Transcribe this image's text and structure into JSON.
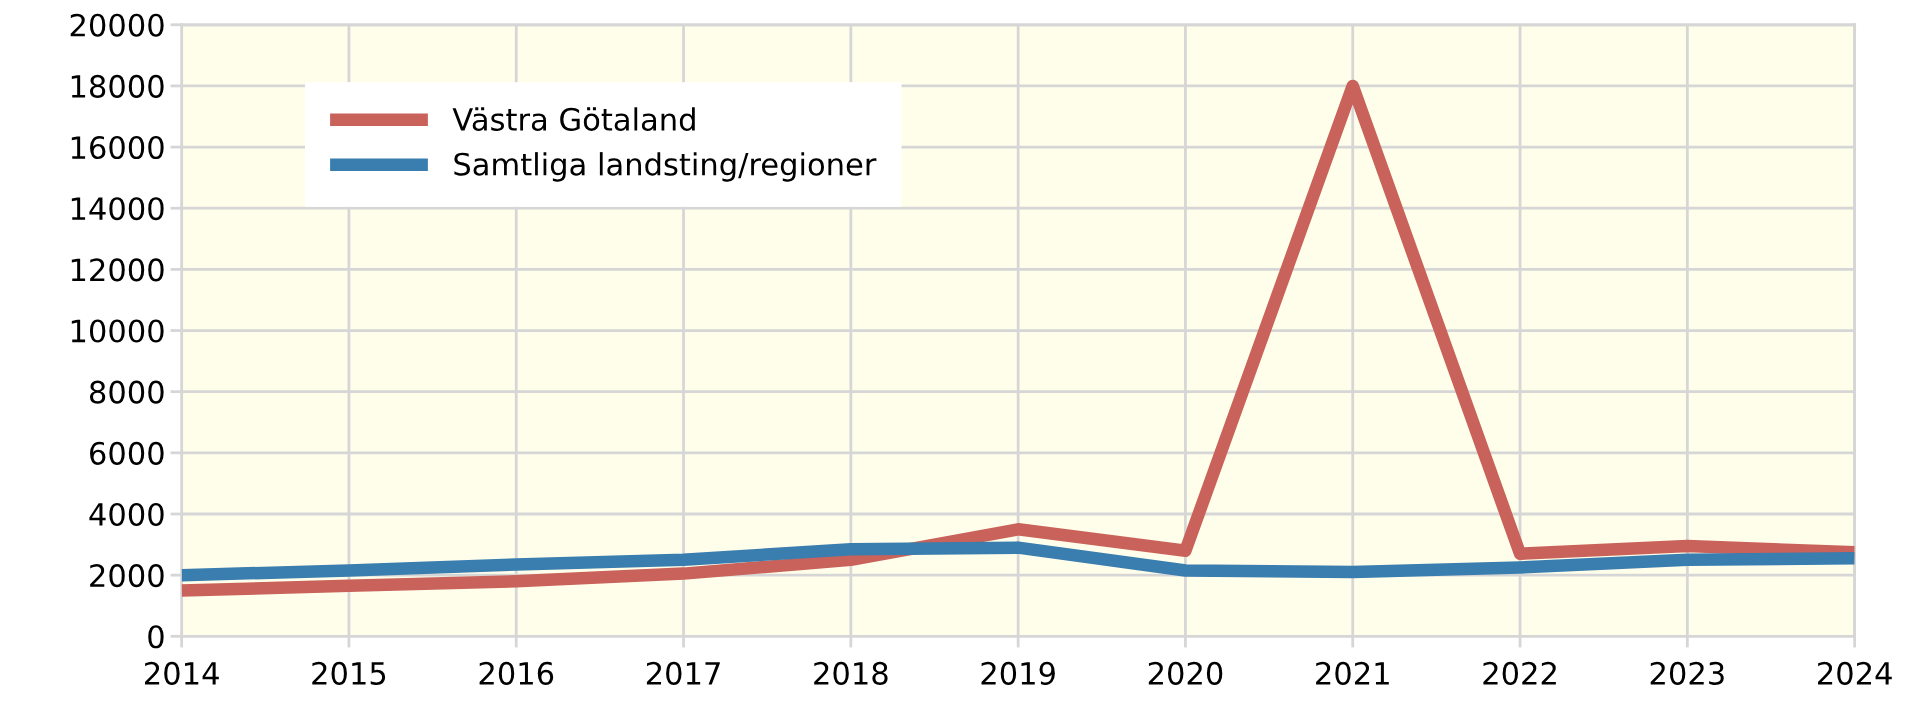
{
  "chart_data": {
    "type": "line",
    "x": [
      2014,
      2015,
      2016,
      2017,
      2018,
      2019,
      2020,
      2021,
      2022,
      2023,
      2024
    ],
    "series": [
      {
        "name": "Västra Götaland",
        "color": "#c9625a",
        "values": [
          1500,
          1650,
          1800,
          2050,
          2500,
          3500,
          2800,
          18000,
          2700,
          2950,
          2750
        ]
      },
      {
        "name": "Samtliga landsting/regioner",
        "color": "#3a7daf",
        "values": [
          2000,
          2150,
          2350,
          2500,
          2850,
          2900,
          2150,
          2100,
          2250,
          2500,
          2550
        ]
      }
    ],
    "xlim": [
      2014,
      2024
    ],
    "xticks": [
      2014,
      2015,
      2016,
      2017,
      2018,
      2019,
      2020,
      2021,
      2022,
      2023,
      2024
    ],
    "ylim": [
      0,
      20000
    ],
    "yticks": [
      0,
      2000,
      4000,
      6000,
      8000,
      10000,
      12000,
      14000,
      16000,
      18000,
      20000
    ],
    "grid": true,
    "legend": "top left",
    "marker": "none",
    "line_style": "solid"
  }
}
